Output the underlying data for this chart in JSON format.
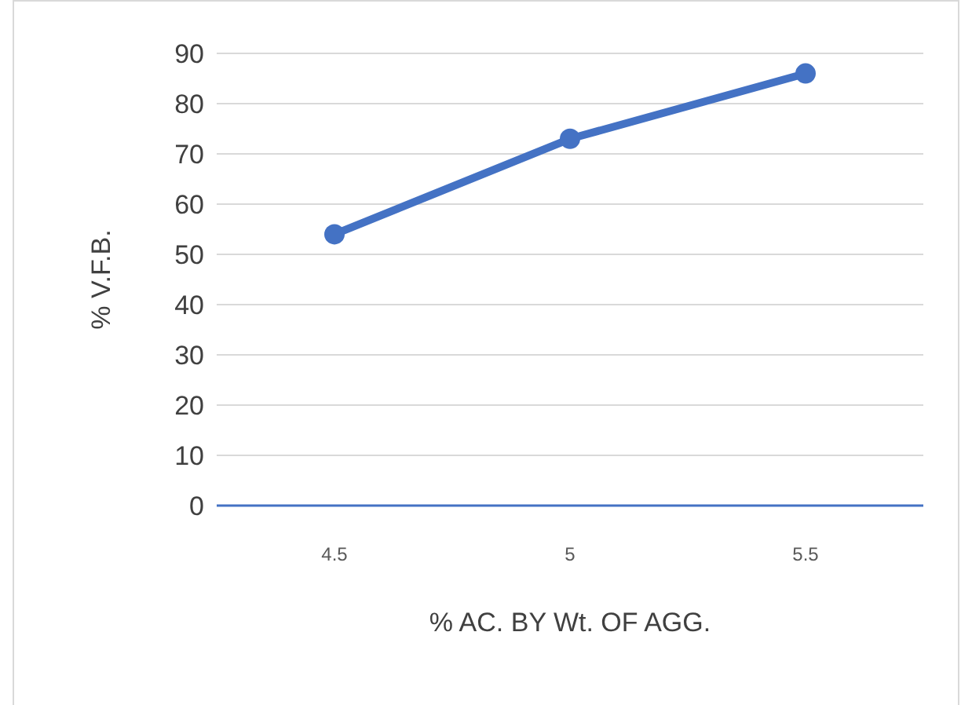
{
  "chart_data": {
    "type": "line",
    "xlabel": "% AC. BY Wt. OF AGG.",
    "ylabel": "% V.F.B.",
    "categories": [
      "4.5",
      "5",
      "5.5"
    ],
    "series": [
      {
        "color": "#4472c4",
        "values": [
          54,
          73,
          86
        ]
      }
    ],
    "ylim": [
      0,
      90
    ],
    "yticks": [
      0,
      10,
      20,
      30,
      40,
      50,
      60,
      70,
      80,
      90
    ],
    "grid": "y",
    "marker": "circle",
    "line_style": "solid"
  }
}
